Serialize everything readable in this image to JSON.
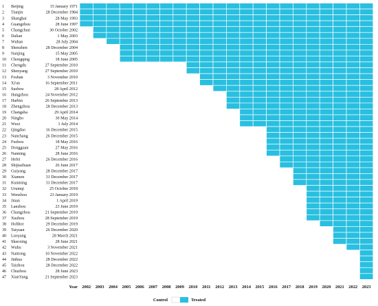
{
  "chart_data": {
    "type": "heatmap",
    "title": "",
    "xlabel": "Year",
    "ylabel": "",
    "x": [
      2002,
      2003,
      2004,
      2005,
      2006,
      2007,
      2008,
      2009,
      2010,
      2011,
      2012,
      2013,
      2014,
      2015,
      2016,
      2017,
      2018,
      2019,
      2020,
      2021,
      2022,
      2023
    ],
    "rows": [
      {
        "n": "1",
        "city": "Beijing",
        "date": "15 January 1971",
        "start": 2002
      },
      {
        "n": "2",
        "city": "Tianjin",
        "date": "28 December 1984",
        "start": 2002
      },
      {
        "n": "3",
        "city": "Shanghai",
        "date": "28 May 1993",
        "start": 2002
      },
      {
        "n": "4",
        "city": "Guangzhou",
        "date": "28 June 1997",
        "start": 2002
      },
      {
        "n": "5",
        "city": "Changchun",
        "date": "30 October 2002",
        "start": 2003
      },
      {
        "n": "6",
        "city": "Dalian",
        "date": "1 May 2003",
        "start": 2003
      },
      {
        "n": "7",
        "city": "Wuhan",
        "date": "28 July 2004",
        "start": 2004
      },
      {
        "n": "8",
        "city": "Shenzhen",
        "date": "28 December 2004",
        "start": 2005
      },
      {
        "n": "9",
        "city": "Nanjing",
        "date": "15 May 2005",
        "start": 2005
      },
      {
        "n": "10",
        "city": "Chongqing",
        "date": "18 June 2005",
        "start": 2005
      },
      {
        "n": "11",
        "city": "Chengdu",
        "date": "27 September 2010",
        "start": 2010
      },
      {
        "n": "12",
        "city": "Shenyang",
        "date": "27 September 2010",
        "start": 2010
      },
      {
        "n": "13",
        "city": "Foshan",
        "date": "3 November 2010",
        "start": 2011
      },
      {
        "n": "14",
        "city": "Xi'an",
        "date": "16 September 2011",
        "start": 2011
      },
      {
        "n": "15",
        "city": "Suzhou",
        "date": "28 April 2012",
        "start": 2012
      },
      {
        "n": "16",
        "city": "Hangzhou",
        "date": "24 November 2012",
        "start": 2013
      },
      {
        "n": "17",
        "city": "Harbin",
        "date": "26 September 2013",
        "start": 2013
      },
      {
        "n": "18",
        "city": "Zhengzhou",
        "date": "28 December 2013",
        "start": 2013
      },
      {
        "n": "19",
        "city": "Changsha",
        "date": "29 April 2014",
        "start": 2014
      },
      {
        "n": "20",
        "city": "Ningbo",
        "date": "30 May 2014",
        "start": 2014
      },
      {
        "n": "21",
        "city": "Wuxi",
        "date": "1 July 2014",
        "start": 2014
      },
      {
        "n": "22",
        "city": "Qingdao",
        "date": "16 December 2015",
        "start": 2016
      },
      {
        "n": "23",
        "city": "Nanchang",
        "date": "26 December 2015",
        "start": 2016
      },
      {
        "n": "24",
        "city": "Fuzhou",
        "date": "18 May 2016",
        "start": 2016
      },
      {
        "n": "25",
        "city": "Dongguan",
        "date": "27 May 2016",
        "start": 2016
      },
      {
        "n": "26",
        "city": "Nanning",
        "date": "28 June 2016",
        "start": 2016
      },
      {
        "n": "27",
        "city": "Hefei",
        "date": "26 December 2016",
        "start": 2017
      },
      {
        "n": "28",
        "city": "Shijiazhuan",
        "date": "26 June 2017",
        "start": 2017
      },
      {
        "n": "29",
        "city": "Guiyang",
        "date": "28 December 2017",
        "start": 2018
      },
      {
        "n": "30",
        "city": "Xiamen",
        "date": "31 December 2017",
        "start": 2018
      },
      {
        "n": "31",
        "city": "Kunming",
        "date": "31 December 2017",
        "start": 2018
      },
      {
        "n": "32",
        "city": "Urumqi",
        "date": "25 October 2018",
        "start": 2019
      },
      {
        "n": "33",
        "city": "Wenzhou",
        "date": "23 January 2019",
        "start": 2019
      },
      {
        "n": "34",
        "city": "Jinan",
        "date": "1 April 2019",
        "start": 2019
      },
      {
        "n": "35",
        "city": "Lanzhou",
        "date": "23 June 2019",
        "start": 2019
      },
      {
        "n": "36",
        "city": "Changzhou",
        "date": "21 September 2019",
        "start": 2019
      },
      {
        "n": "37",
        "city": "Xuzhou",
        "date": "28 September 2019",
        "start": 2019
      },
      {
        "n": "38",
        "city": "Hohhot",
        "date": "29 December 2019",
        "start": 2020
      },
      {
        "n": "39",
        "city": "Taiyuan",
        "date": "26 December 2020",
        "start": 2021
      },
      {
        "n": "40",
        "city": "Luoyang",
        "date": "28 March 2021",
        "start": 2021
      },
      {
        "n": "41",
        "city": "Shaoxing",
        "date": "28 June 2021",
        "start": 2021
      },
      {
        "n": "42",
        "city": "Wuhu",
        "date": "3 November 2021",
        "start": 2022
      },
      {
        "n": "43",
        "city": "Nantong",
        "date": "10 November 2022",
        "start": 2023
      },
      {
        "n": "44",
        "city": "Jinhua",
        "date": "28 December 2022",
        "start": 2023
      },
      {
        "n": "45",
        "city": "Taizhou",
        "date": "28 December 2022",
        "start": 2023
      },
      {
        "n": "46",
        "city": "Chuzhou",
        "date": "28 June 2023",
        "start": 2023
      },
      {
        "n": "47",
        "city": "XianYang",
        "date": "21 September 2023",
        "start": 2023
      }
    ],
    "legend": [
      {
        "label": "Control",
        "color": "#ffffff"
      },
      {
        "label": "Treated",
        "color": "#29bfe0"
      }
    ],
    "legend_position": "bottom",
    "colors": {
      "treated": "#29bfe0",
      "control": "#ffffff",
      "gap": "#ffffff"
    },
    "grid": true
  }
}
